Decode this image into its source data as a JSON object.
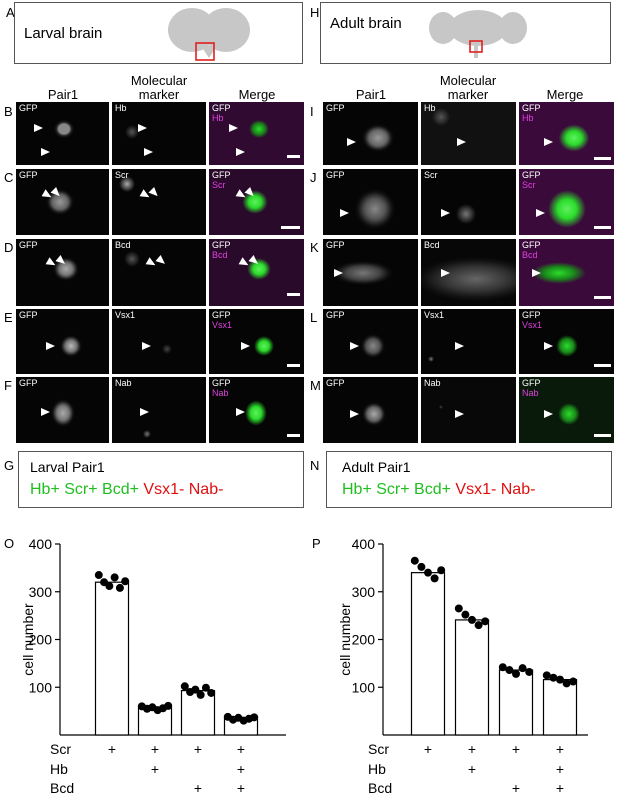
{
  "panels": {
    "A": "A",
    "H": "H",
    "B": "B",
    "C": "C",
    "D": "D",
    "E": "E",
    "F": "F",
    "G": "G",
    "I": "I",
    "J": "J",
    "K": "K",
    "L": "L",
    "M": "M",
    "N": "N",
    "O": "O",
    "P": "P"
  },
  "schematics": {
    "larval": {
      "title": "Larval brain"
    },
    "adult": {
      "title": "Adult brain"
    }
  },
  "column_headers": {
    "left": {
      "c1": "Pair1",
      "c2a": "Molecular",
      "c2b": "marker",
      "c3": "Merge"
    },
    "right": {
      "c1": "Pair1",
      "c2a": "Molecular",
      "c2b": "marker",
      "c3": "Merge"
    }
  },
  "larval_rows": [
    {
      "gfp": "GFP",
      "marker": "Hb"
    },
    {
      "gfp": "GFP",
      "marker": "Scr"
    },
    {
      "gfp": "GFP",
      "marker": "Bcd"
    },
    {
      "gfp": "GFP",
      "marker": "Vsx1"
    },
    {
      "gfp": "GFP",
      "marker": "Nab"
    }
  ],
  "adult_rows": [
    {
      "gfp": "GFP",
      "marker": "Hb"
    },
    {
      "gfp": "GFP",
      "marker": "Scr"
    },
    {
      "gfp": "GFP",
      "marker": "Bcd"
    },
    {
      "gfp": "GFP",
      "marker": "Vsx1"
    },
    {
      "gfp": "GFP",
      "marker": "Nab"
    }
  ],
  "summary": {
    "larval": {
      "title": "Larval Pair1",
      "positive": "Hb+ Scr+ Bcd+",
      "negative": "Vsx1- Nab-"
    },
    "adult": {
      "title": "Adult Pair1",
      "positive": "Hb+ Scr+ Bcd+",
      "negative": "Vsx1- Nab-"
    }
  },
  "colors": {
    "gfp_green": "#2bdc2b",
    "marker_magenta": "#e040e0",
    "positive_green": "#1fbf1f",
    "negative_red": "#e01010"
  },
  "chart_data": [
    {
      "type": "bar",
      "panel": "O",
      "ylabel": "cell number",
      "ylim": [
        0,
        400
      ],
      "yticks": [
        100,
        200,
        300,
        400
      ],
      "row_labels": [
        "Scr",
        "Hb",
        "Bcd"
      ],
      "categories": [
        {
          "scr": "+",
          "hb": "",
          "bcd": ""
        },
        {
          "scr": "+",
          "hb": "+",
          "bcd": ""
        },
        {
          "scr": "+",
          "hb": "",
          "bcd": "+"
        },
        {
          "scr": "+",
          "hb": "+",
          "bcd": "+"
        }
      ],
      "values": [
        320,
        57,
        93,
        35
      ],
      "points": [
        [
          335,
          320,
          312,
          330,
          308,
          322
        ],
        [
          60,
          55,
          58,
          52,
          56,
          61
        ],
        [
          102,
          90,
          95,
          84,
          99,
          88
        ],
        [
          38,
          32,
          36,
          30,
          34,
          37
        ]
      ]
    },
    {
      "type": "bar",
      "panel": "P",
      "ylabel": "cell number",
      "ylim": [
        0,
        400
      ],
      "yticks": [
        100,
        200,
        300,
        400
      ],
      "row_labels": [
        "Scr",
        "Hb",
        "Bcd"
      ],
      "categories": [
        {
          "scr": "+",
          "hb": "",
          "bcd": ""
        },
        {
          "scr": "+",
          "hb": "+",
          "bcd": ""
        },
        {
          "scr": "+",
          "hb": "",
          "bcd": "+"
        },
        {
          "scr": "+",
          "hb": "+",
          "bcd": "+"
        }
      ],
      "values": [
        340,
        241,
        136,
        116
      ],
      "points": [
        [
          365,
          352,
          340,
          328,
          345
        ],
        [
          265,
          252,
          241,
          230,
          238
        ],
        [
          142,
          136,
          128,
          140,
          132
        ],
        [
          125,
          120,
          116,
          108,
          112
        ]
      ]
    }
  ]
}
